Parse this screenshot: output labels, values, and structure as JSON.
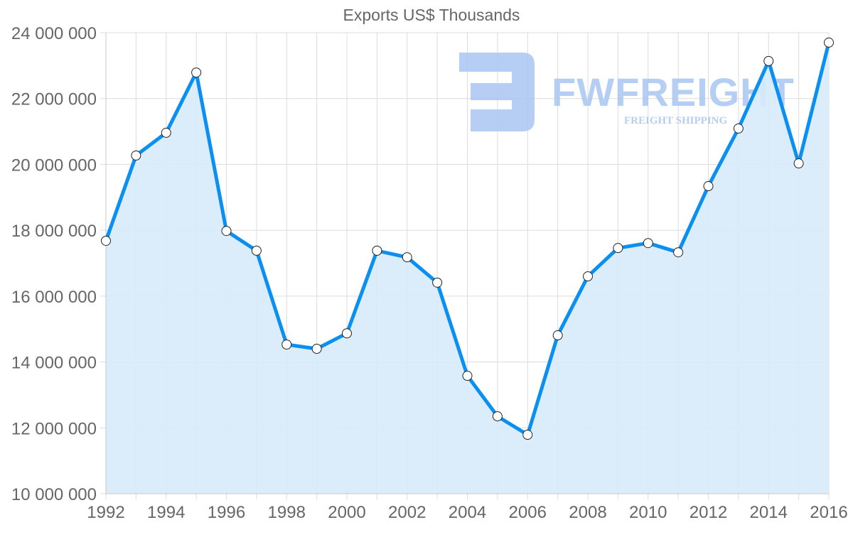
{
  "chart_data": {
    "type": "line",
    "title": "Exports US$ Thousands",
    "xlabel": "",
    "ylabel": "",
    "x": [
      1992,
      1993,
      1994,
      1995,
      1996,
      1997,
      1998,
      1999,
      2000,
      2001,
      2002,
      2003,
      2004,
      2005,
      2006,
      2007,
      2008,
      2009,
      2010,
      2011,
      2012,
      2013,
      2014,
      2015,
      2016
    ],
    "x_tick_labels": [
      "1992",
      "1994",
      "1996",
      "1998",
      "2000",
      "2002",
      "2004",
      "2006",
      "2008",
      "2010",
      "2012",
      "2014",
      "2016"
    ],
    "y_tick_labels": [
      "10 000 000",
      "12 000 000",
      "14 000 000",
      "16 000 000",
      "18 000 000",
      "20 000 000",
      "22 000 000",
      "24 000 000"
    ],
    "ylim": [
      10000000,
      24000000
    ],
    "grid": true,
    "legend": null,
    "series": [
      {
        "name": "Exports US$ Thousands",
        "color": "#0b8ff0",
        "fill": "#d7ebfb",
        "values": [
          17680000,
          20270000,
          20960000,
          22790000,
          17980000,
          17380000,
          14530000,
          14400000,
          14870000,
          17380000,
          17180000,
          16410000,
          13580000,
          12350000,
          11790000,
          14810000,
          16600000,
          17460000,
          17610000,
          17330000,
          19340000,
          21090000,
          23140000,
          20030000,
          23700000
        ]
      }
    ]
  },
  "watermark": {
    "brand": "FWFREIGHT",
    "tagline": "FREIGHT SHIPPING",
    "color": "#a9c6f2"
  }
}
